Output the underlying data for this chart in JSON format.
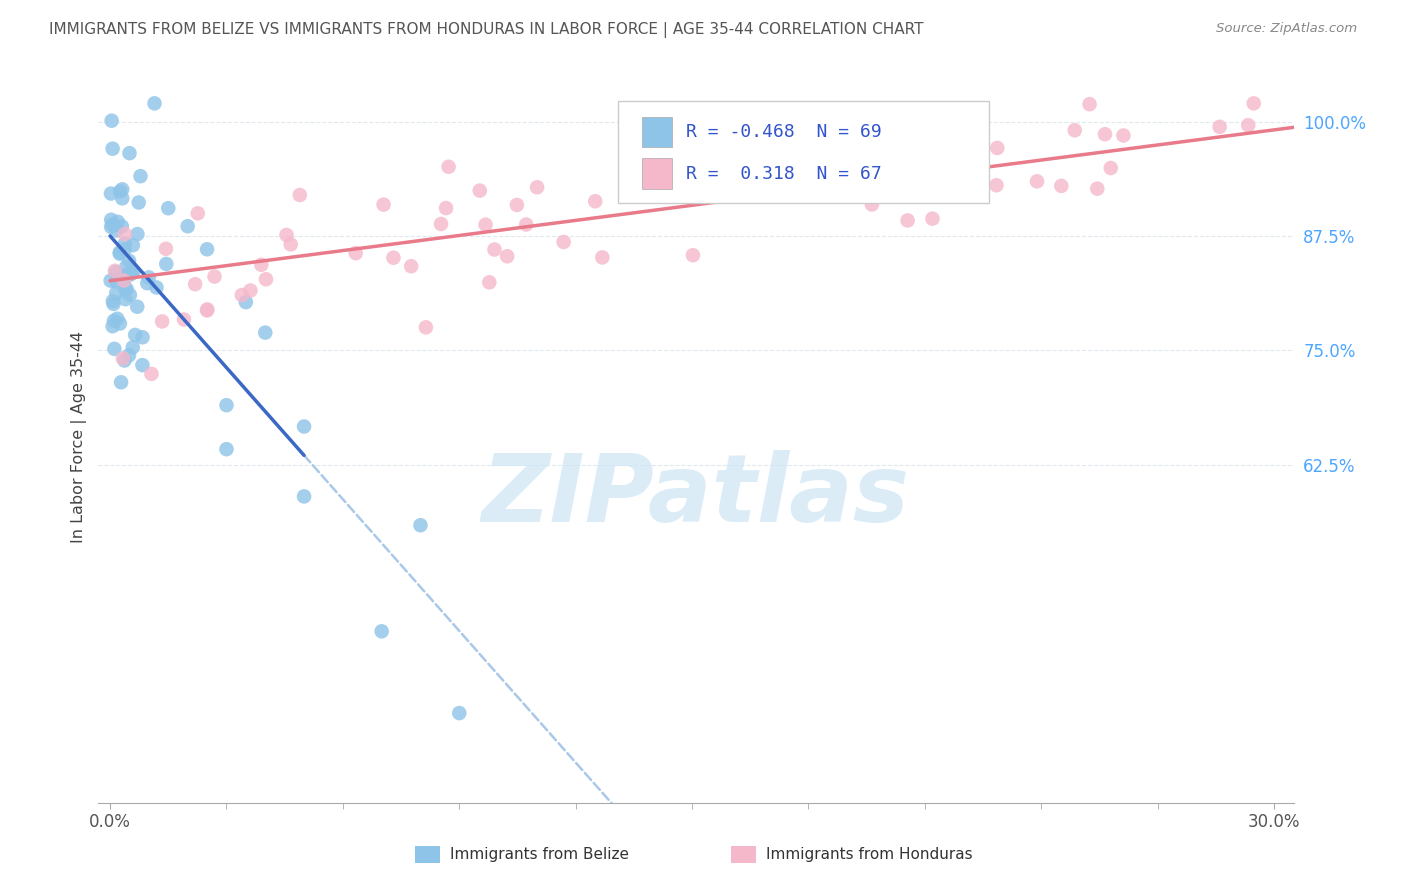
{
  "title": "IMMIGRANTS FROM BELIZE VS IMMIGRANTS FROM HONDURAS IN LABOR FORCE | AGE 35-44 CORRELATION CHART",
  "source": "Source: ZipAtlas.com",
  "ylabel": "In Labor Force | Age 35-44",
  "x_label_bottom_left": "0.0%",
  "x_label_bottom_right": "30.0%",
  "legend_belize_label": "Immigrants from Belize",
  "legend_honduras_label": "Immigrants from Honduras",
  "R_belize": -0.468,
  "N_belize": 69,
  "R_honduras": 0.318,
  "N_honduras": 67,
  "belize_color": "#8ec4e8",
  "honduras_color": "#f5b8cb",
  "trend_belize_color": "#3a68c4",
  "trend_honduras_color": "#e87a8a",
  "dashed_color": "#aac8e8",
  "background_color": "#ffffff",
  "grid_color": "#e0e8f0",
  "title_color": "#555555",
  "right_ytick_color": "#4da6ff",
  "yticks_right": [
    100.0,
    87.5,
    75.0,
    62.5
  ],
  "ylim": [
    0.255,
    1.055
  ],
  "xlim": [
    -0.003,
    0.305
  ],
  "watermark_text": "ZIPatlas",
  "watermark_color": "#cce5f5",
  "belize_scatter_seed": 12,
  "honduras_scatter_seed": 7,
  "trend_belize_x0": 0.0,
  "trend_belize_y0": 0.875,
  "trend_belize_slope": -4.8,
  "trend_belize_solid_end": 0.05,
  "trend_belize_dashed_end": 0.16,
  "trend_honduras_x0": 0.0,
  "trend_honduras_y0": 0.826,
  "trend_honduras_slope": 0.55,
  "trend_honduras_end": 0.305
}
